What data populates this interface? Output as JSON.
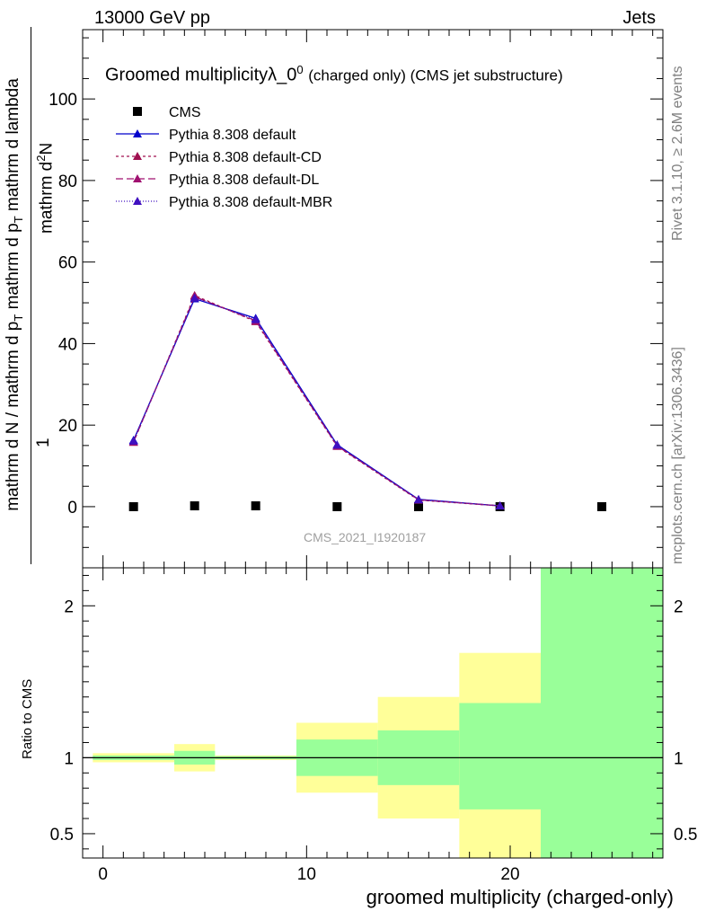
{
  "header": {
    "energy": "13000 GeV pp",
    "category": "Jets"
  },
  "sidebar": {
    "rivet": "Rivet 3.1.10, ≥ 2.6M events",
    "mcplots": "mcplots.cern.ch [arXiv:1306.3436]"
  },
  "chart_data": [
    {
      "type": "scatter",
      "title_main": "Groomed multiplicityλ_0",
      "title_sup": "0",
      "title_suffix": "(charged only) (CMS jet substructure)",
      "watermark": "CMS_2021_I1920187",
      "ylabel_numer": "1",
      "ylabel_denom": "mathrm d N / mathrm d p",
      "ylabel_denom_sub": "T",
      "ylabel_denom_rest": "mathrm d p",
      "ylabel_denom_sub2": "T",
      "ylabel_denom_end": "mathrm d lambda",
      "ylabel_top": "mathrm d",
      "ylabel_top_sup": "2",
      "ylabel_top_end": "N",
      "xlim": [
        -1,
        27.5
      ],
      "ylim": [
        -15,
        117
      ],
      "yticks": [
        0,
        20,
        40,
        60,
        80,
        100
      ],
      "ytick_labels": [
        "0",
        "20",
        "40",
        "60",
        "80",
        "100"
      ],
      "legend_position": "top-left",
      "series": [
        {
          "name": "CMS",
          "color": "#000000",
          "marker": "square",
          "x": [
            1.5,
            4.5,
            7.5,
            11.5,
            15.5,
            19.5,
            24.5
          ],
          "y": [
            0.0,
            0.2,
            0.2,
            0.0,
            0.0,
            0.0,
            0.0
          ]
        },
        {
          "name": "Pythia 8.308 default",
          "color": "#0000cc",
          "marker": "triangle",
          "dash": "",
          "x": [
            1.5,
            4.5,
            7.5,
            11.5,
            15.5,
            19.5
          ],
          "y": [
            16.3,
            51.0,
            46.2,
            15.2,
            1.8,
            0.2
          ]
        },
        {
          "name": "Pythia 8.308 default-CD",
          "color": "#a01050",
          "marker": "triangle",
          "dash": "3,3",
          "x": [
            1.5,
            4.5,
            7.5,
            11.5,
            15.5,
            19.5
          ],
          "y": [
            15.8,
            51.8,
            45.4,
            14.8,
            1.6,
            0.2
          ]
        },
        {
          "name": "Pythia 8.308 default-DL",
          "color": "#a01070",
          "marker": "triangle",
          "dash": "8,4",
          "x": [
            1.5,
            4.5,
            7.5,
            11.5,
            15.5,
            19.5
          ],
          "y": [
            15.9,
            51.5,
            45.6,
            14.9,
            1.7,
            0.2
          ]
        },
        {
          "name": "Pythia 8.308 default-MBR",
          "color": "#4010c0",
          "marker": "triangle",
          "dash": "1,2",
          "x": [
            1.5,
            4.5,
            7.5,
            11.5,
            15.5,
            19.5
          ],
          "y": [
            16.1,
            51.2,
            45.9,
            15.1,
            1.7,
            0.2
          ]
        }
      ]
    },
    {
      "type": "ratio_bands",
      "ylabel": "Ratio to CMS",
      "xlabel": "groomed multiplicity (charged-only)",
      "xlim": [
        -1,
        27.5
      ],
      "ylim": [
        0.34,
        2.25
      ],
      "xticks": [
        0,
        10,
        20
      ],
      "xtick_labels": [
        "0",
        "10",
        "20"
      ],
      "yticks": [
        0.5,
        1,
        2
      ],
      "ytick_labels": [
        "0.5",
        "1",
        "2"
      ],
      "colors": {
        "outer": "#ffff99",
        "inner": "#99ff99"
      },
      "bins": [
        {
          "x0": -0.5,
          "x1": 3.5,
          "outer": [
            0.97,
            1.03
          ],
          "inner": [
            0.985,
            1.015
          ]
        },
        {
          "x0": 3.5,
          "x1": 5.5,
          "outer": [
            0.91,
            1.09
          ],
          "inner": [
            0.955,
            1.045
          ]
        },
        {
          "x0": 5.5,
          "x1": 9.5,
          "outer": [
            0.985,
            1.015
          ],
          "inner": [
            0.99,
            1.01
          ]
        },
        {
          "x0": 9.5,
          "x1": 13.5,
          "outer": [
            0.77,
            1.23
          ],
          "inner": [
            0.88,
            1.12
          ]
        },
        {
          "x0": 13.5,
          "x1": 17.5,
          "outer": [
            0.6,
            1.4
          ],
          "inner": [
            0.82,
            1.18
          ]
        },
        {
          "x0": 17.5,
          "x1": 21.5,
          "outer": [
            0.34,
            1.69
          ],
          "inner": [
            0.66,
            1.36
          ]
        },
        {
          "x0": 21.5,
          "x1": 27.5,
          "outer": [
            0.34,
            2.25
          ],
          "inner": [
            0.34,
            2.25
          ]
        }
      ]
    }
  ]
}
